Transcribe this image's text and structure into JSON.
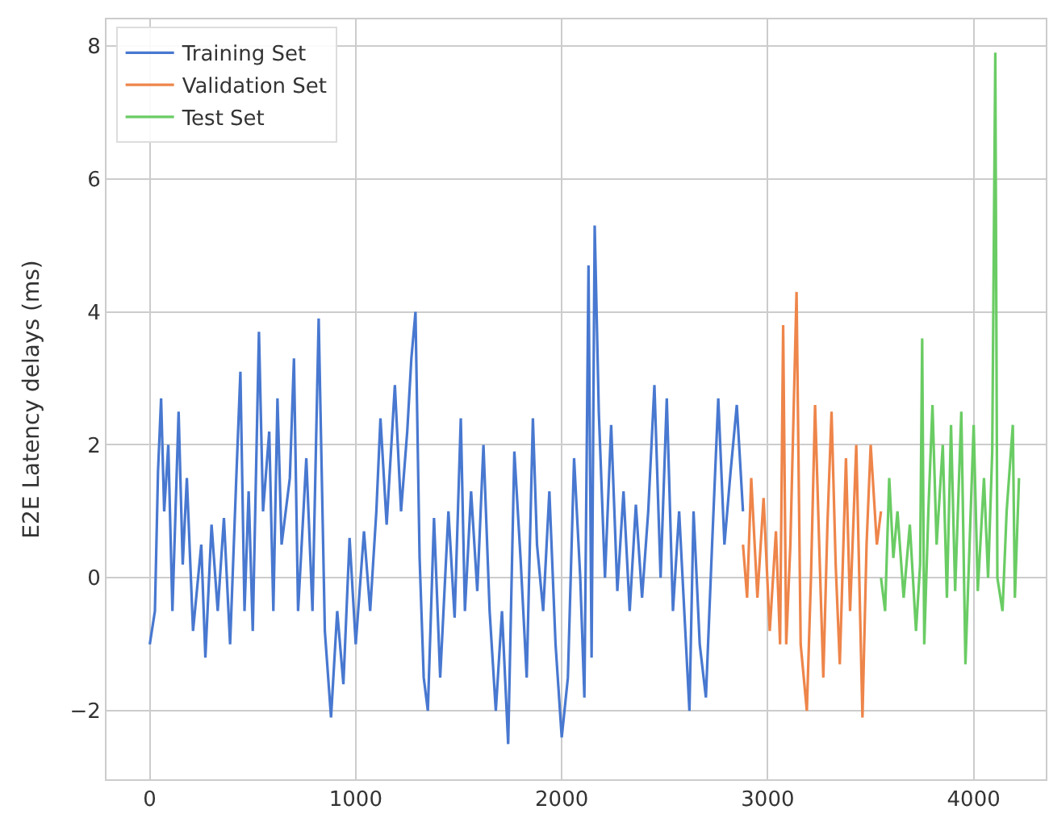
{
  "chart_data": {
    "type": "line",
    "ylabel": "E2E Latency delays (ms)",
    "xlim": [
      -210,
      4350
    ],
    "ylim": [
      -3.03,
      8.4
    ],
    "xticks": [
      0,
      1000,
      2000,
      3000,
      4000
    ],
    "yticks": [
      -2,
      0,
      2,
      4,
      6,
      8
    ],
    "grid": true,
    "legend": "top left",
    "marker": "none",
    "line_style": "solid",
    "series": [
      {
        "name": "Training Set",
        "color": "#4878d0",
        "x": [
          0,
          25,
          40,
          55,
          70,
          90,
          110,
          140,
          160,
          180,
          210,
          250,
          270,
          300,
          330,
          360,
          390,
          420,
          440,
          460,
          480,
          500,
          530,
          550,
          580,
          600,
          620,
          640,
          680,
          700,
          720,
          760,
          790,
          820,
          850,
          880,
          910,
          940,
          970,
          1000,
          1040,
          1070,
          1100,
          1120,
          1150,
          1190,
          1220,
          1250,
          1270,
          1290,
          1310,
          1330,
          1350,
          1380,
          1410,
          1450,
          1480,
          1510,
          1530,
          1560,
          1590,
          1620,
          1650,
          1680,
          1710,
          1740,
          1770,
          1800,
          1830,
          1860,
          1880,
          1910,
          1940,
          1970,
          2000,
          2030,
          2060,
          2090,
          2110,
          2130,
          2145,
          2160,
          2180,
          2210,
          2240,
          2270,
          2300,
          2330,
          2360,
          2390,
          2420,
          2450,
          2480,
          2510,
          2540,
          2570,
          2600,
          2620,
          2640,
          2670,
          2700,
          2730,
          2760,
          2790,
          2820,
          2850,
          2880
        ],
        "values": [
          -1.0,
          -0.5,
          1.6,
          2.7,
          1.0,
          2.0,
          -0.5,
          2.5,
          0.2,
          1.5,
          -0.8,
          0.5,
          -1.2,
          0.8,
          -0.5,
          0.9,
          -1.0,
          1.5,
          3.1,
          -0.5,
          1.3,
          -0.8,
          3.7,
          1.0,
          2.2,
          -0.5,
          2.7,
          0.5,
          1.5,
          3.3,
          -0.5,
          1.8,
          -0.5,
          3.9,
          -0.8,
          -2.1,
          -0.5,
          -1.6,
          0.6,
          -1.0,
          0.7,
          -0.5,
          1.0,
          2.4,
          0.8,
          2.9,
          1.0,
          2.2,
          3.3,
          4.0,
          0.3,
          -1.5,
          -2.0,
          0.9,
          -1.5,
          1.0,
          -0.6,
          2.4,
          -0.5,
          1.3,
          -0.2,
          2.0,
          -0.5,
          -2.0,
          -0.5,
          -2.5,
          1.9,
          0.3,
          -1.5,
          2.4,
          0.5,
          -0.5,
          1.3,
          -1.0,
          -2.4,
          -1.5,
          1.8,
          0.0,
          -1.8,
          4.7,
          -1.2,
          5.3,
          2.5,
          0.0,
          2.3,
          -0.2,
          1.3,
          -0.5,
          1.1,
          -0.3,
          1.0,
          2.9,
          0.0,
          2.7,
          -0.5,
          1.0,
          -0.8,
          -2.0,
          1.0,
          -1.0,
          -1.8,
          0.5,
          2.7,
          0.5,
          1.6,
          2.6,
          1.0
        ]
      },
      {
        "name": "Validation Set",
        "color": "#ee854a",
        "x": [
          2880,
          2900,
          2920,
          2950,
          2980,
          3010,
          3040,
          3060,
          3075,
          3090,
          3110,
          3140,
          3160,
          3190,
          3210,
          3230,
          3250,
          3270,
          3290,
          3310,
          3330,
          3350,
          3380,
          3400,
          3430,
          3460,
          3480,
          3500,
          3530,
          3550
        ],
        "values": [
          0.5,
          -0.3,
          1.5,
          -0.3,
          1.2,
          -0.8,
          0.7,
          -1.0,
          3.8,
          -1.0,
          0.5,
          4.3,
          -1.0,
          -2.0,
          0.0,
          2.6,
          0.5,
          -1.5,
          0.8,
          2.5,
          0.2,
          -1.3,
          1.8,
          -0.5,
          2.0,
          -2.1,
          0.5,
          2.0,
          0.5,
          1.0
        ]
      },
      {
        "name": "Test Set",
        "color": "#6acc64",
        "x": [
          3550,
          3570,
          3590,
          3610,
          3630,
          3660,
          3690,
          3720,
          3740,
          3750,
          3760,
          3780,
          3800,
          3820,
          3850,
          3870,
          3890,
          3910,
          3940,
          3960,
          3980,
          4000,
          4020,
          4050,
          4070,
          4090,
          4105,
          4115,
          4140,
          4160,
          4190,
          4200,
          4220
        ],
        "values": [
          0.0,
          -0.5,
          1.5,
          0.3,
          1.0,
          -0.3,
          0.8,
          -0.8,
          0.2,
          3.6,
          -1.0,
          1.0,
          2.6,
          0.5,
          2.0,
          -0.3,
          2.3,
          -0.2,
          2.5,
          -1.3,
          0.5,
          2.3,
          -0.2,
          1.5,
          0.0,
          1.9,
          7.9,
          0.0,
          -0.5,
          1.0,
          2.3,
          -0.3,
          1.5
        ]
      }
    ]
  }
}
